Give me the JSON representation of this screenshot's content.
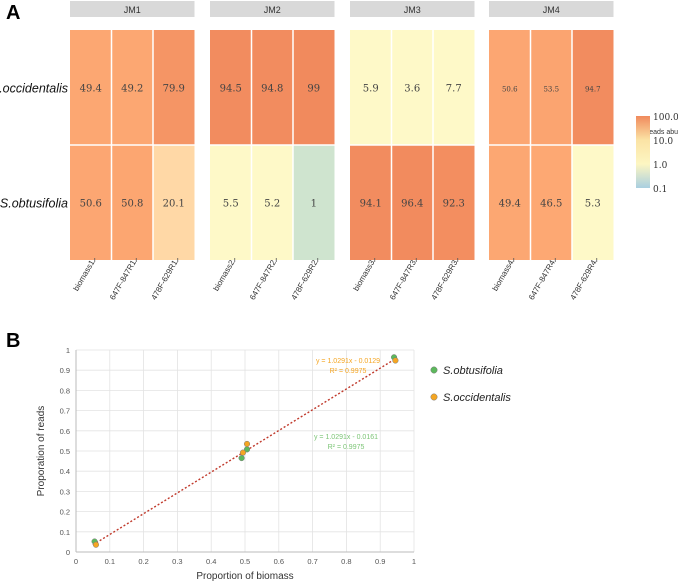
{
  "panels": {
    "a_label": "A",
    "b_label": "B"
  },
  "chart_data": [
    {
      "type": "heatmap",
      "groups": [
        {
          "name": "JM1",
          "columns": [
            "biomass1",
            "647F-847R1",
            "478F-629R1"
          ]
        },
        {
          "name": "JM2",
          "columns": [
            "biomass2",
            "647F-847R2",
            "478F-629R2"
          ]
        },
        {
          "name": "JM3",
          "columns": [
            "biomass3",
            "647F-847R3",
            "478F-629R3"
          ]
        },
        {
          "name": "JM4",
          "columns": [
            "biomass4",
            "647F-847R4",
            "478F-629R4"
          ]
        }
      ],
      "rows": [
        "S.occidentalis",
        "S.obtusifolia"
      ],
      "values": [
        [
          49.4,
          49.2,
          79.9,
          94.5,
          94.8,
          99,
          5.9,
          3.6,
          7.7,
          50.6,
          53.5,
          94.7
        ],
        [
          50.6,
          50.8,
          20.1,
          5.5,
          5.2,
          1,
          94.1,
          96.4,
          92.3,
          49.4,
          46.5,
          5.3
        ]
      ],
      "value_labels": [
        [
          "49.4",
          "49.2",
          "79.9",
          "94.5",
          "94.8",
          "99",
          "5.9",
          "3.6",
          "7.7",
          "50.6",
          "53.5",
          "94.7"
        ],
        [
          "50.6",
          "50.8",
          "20.1",
          "5.5",
          "5.2",
          "1",
          "94.1",
          "96.4",
          "92.3",
          "49.4",
          "46.5",
          "5.3"
        ]
      ],
      "scale": "log",
      "colorbar": {
        "title": "% Reads abundance",
        "ticks": [
          "100.0",
          "10.0",
          "1.0",
          "0.1"
        ],
        "tick_values": [
          100,
          10,
          1,
          0.1
        ],
        "colors": [
          "#f08a5d",
          "#fbe3a5",
          "#fdf6c2",
          "#a9cfe0"
        ]
      },
      "colors": {
        "strip": "#d9d9d9",
        "low": "#fef9c8",
        "mid": "#ffd8a6",
        "high": "#f1895d",
        "very_low": "#cfe4cf"
      }
    },
    {
      "type": "scatter",
      "xlabel": "Proportion of biomass",
      "ylabel": "Proporation of reads",
      "xlim": [
        0,
        1
      ],
      "ylim": [
        0,
        1
      ],
      "xticks": [
        "0",
        "0.1",
        "0.2",
        "0.3",
        "0.4",
        "0.5",
        "0.6",
        "0.7",
        "0.8",
        "0.9",
        "1"
      ],
      "yticks": [
        "0",
        "0.1",
        "0.2",
        "0.3",
        "0.4",
        "0.5",
        "0.6",
        "0.7",
        "0.8",
        "0.9",
        "1"
      ],
      "series": [
        {
          "name": "S.obtusifolia",
          "color": "#5cb85c",
          "x": [
            0.055,
            0.49,
            0.506,
            0.941
          ],
          "y": [
            0.052,
            0.465,
            0.508,
            0.964
          ],
          "equation": "y = 1.0291x - 0.0161",
          "r2": "R² = 0.9975"
        },
        {
          "name": "S.occidentalis",
          "color": "#f5a623",
          "x": [
            0.059,
            0.494,
            0.506,
            0.945
          ],
          "y": [
            0.036,
            0.492,
            0.535,
            0.948
          ],
          "equation": "y = 1.0291x - 0.0129",
          "r2": "R² = 0.9975"
        }
      ],
      "trendline": {
        "slope": 1.0291,
        "intercept": -0.0161,
        "color": "#c0392b",
        "style": "dotted"
      },
      "grid": true,
      "legend": "right"
    }
  ]
}
